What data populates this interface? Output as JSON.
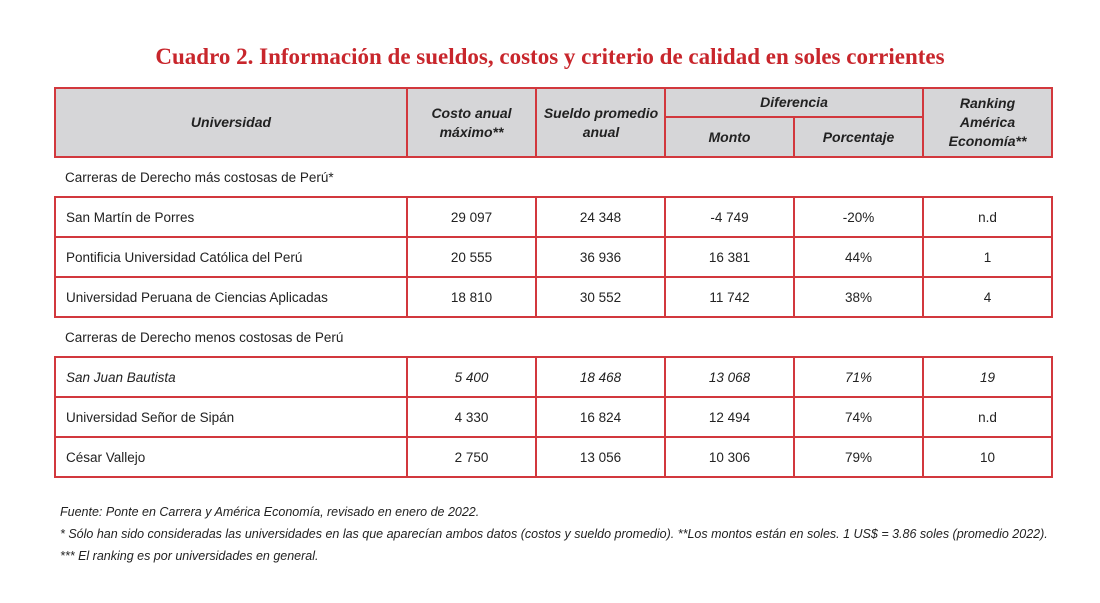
{
  "title": "Cuadro 2. Información de sueldos, costos y criterio de calidad en soles corrientes",
  "headers": {
    "universidad": "Universidad",
    "costo": "Costo anual máximo**",
    "sueldo": "Sueldo promedio anual",
    "diferencia": "Diferencia",
    "monto": "Monto",
    "porcentaje": "Porcentaje",
    "ranking": "Ranking América Economía**"
  },
  "sections": [
    {
      "label": "Carreras de Derecho más costosas de Perú*",
      "rows": [
        {
          "universidad": "San Martín de Porres",
          "costo": "29 097",
          "sueldo": "24 348",
          "monto": "-4 749",
          "porcentaje": "-20%",
          "ranking": "n.d"
        },
        {
          "universidad": "Pontificia Universidad Católica del Perú",
          "costo": "20 555",
          "sueldo": "36 936",
          "monto": "16 381",
          "porcentaje": "44%",
          "ranking": "1"
        },
        {
          "universidad": "Universidad Peruana de Ciencias Aplicadas",
          "costo": "18 810",
          "sueldo": "30 552",
          "monto": "11 742",
          "porcentaje": "38%",
          "ranking": "4"
        }
      ]
    },
    {
      "label": "Carreras de Derecho menos costosas de Perú",
      "rows": [
        {
          "universidad": "San Juan Bautista",
          "costo": "5 400",
          "sueldo": "18 468",
          "monto": "13 068",
          "porcentaje": "71%",
          "ranking": "19",
          "italic": true
        },
        {
          "universidad": "Universidad Señor de Sipán",
          "costo": "4 330",
          "sueldo": "16 824",
          "monto": "12 494",
          "porcentaje": "74%",
          "ranking": "n.d"
        },
        {
          "universidad": "César Vallejo",
          "costo": "2 750",
          "sueldo": "13 056",
          "monto": "10 306",
          "porcentaje": "79%",
          "ranking": "10"
        }
      ]
    }
  ],
  "notes": [
    "Fuente: Ponte en Carrera y América Economía, revisado en enero de 2022.",
    "* Sólo han sido consideradas las universidades en las que aparecían ambos datos (costos y sueldo promedio). **Los montos están en soles. 1 US$ = 3.86 soles (promedio 2022).",
    "*** El ranking es por universidades en general."
  ]
}
